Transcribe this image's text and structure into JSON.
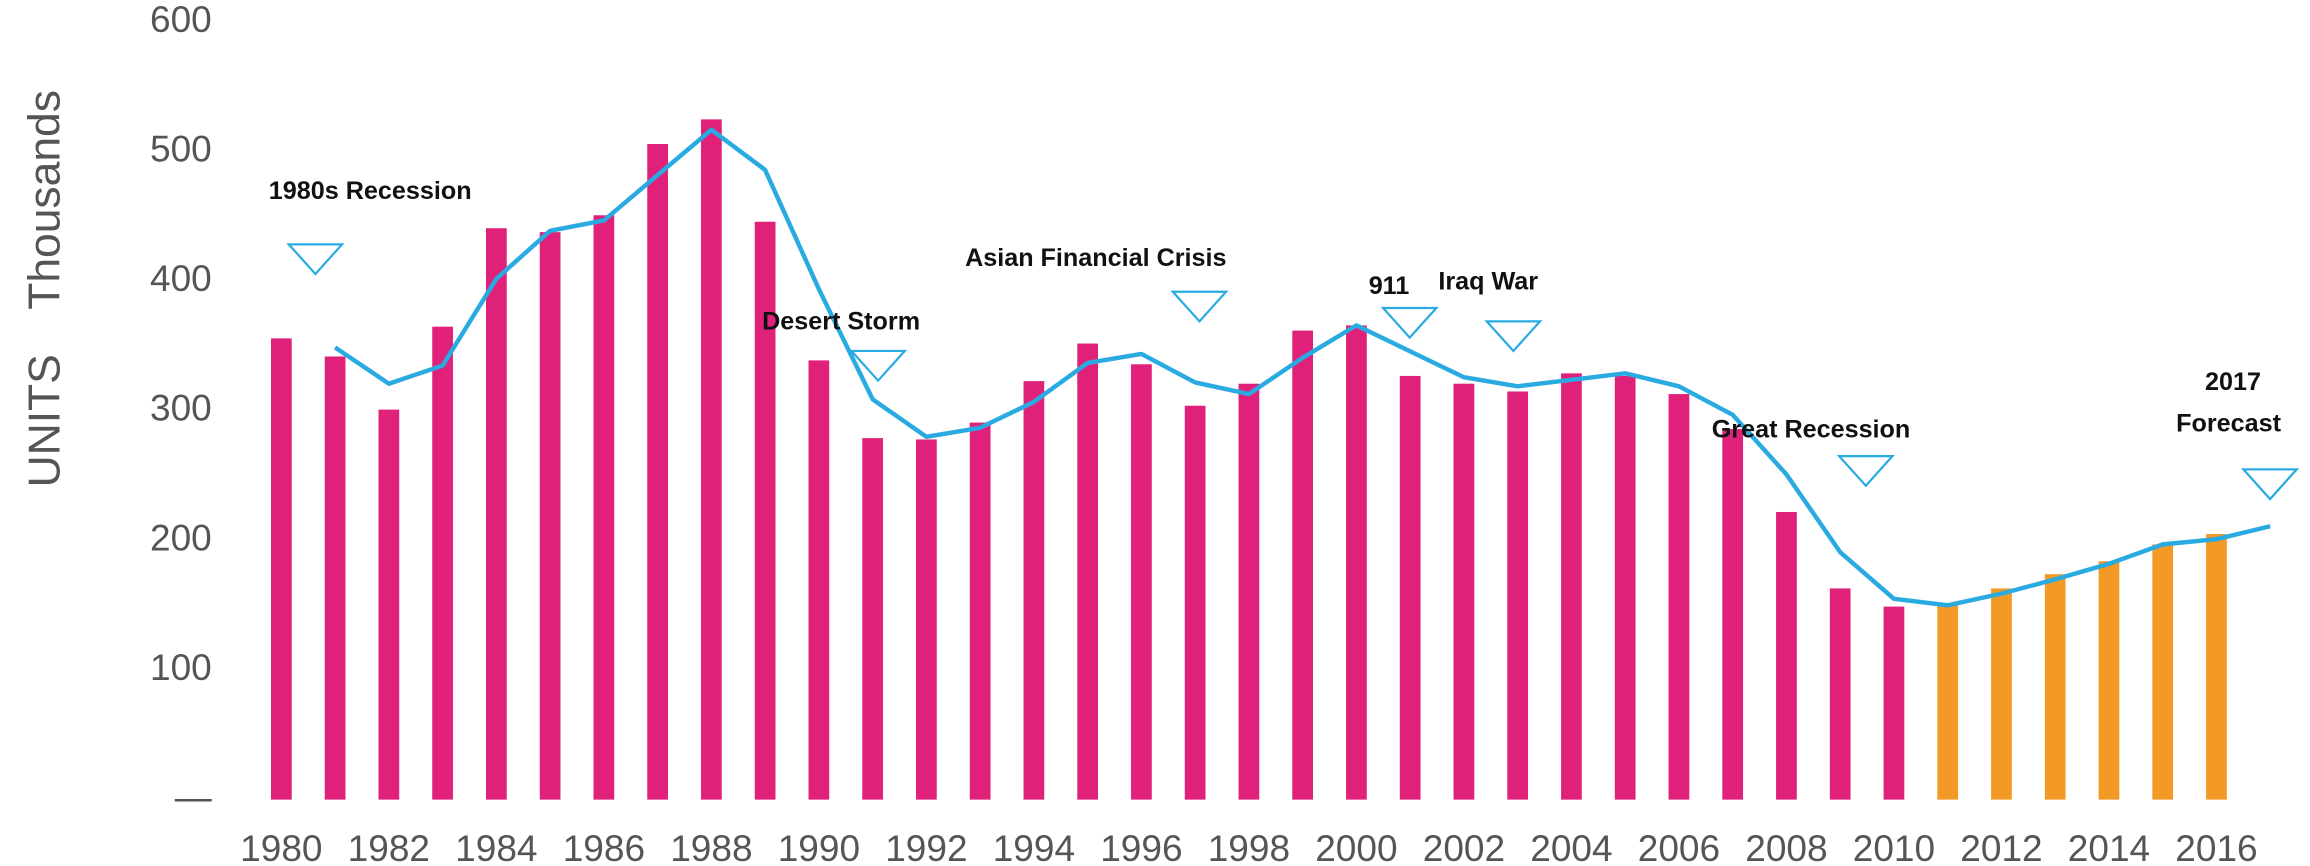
{
  "chart_data": {
    "type": "bar_line",
    "y_label": "UNITS",
    "y_unit": "Thousands",
    "categories": [
      "1980",
      null,
      "1982",
      null,
      "1984",
      null,
      "1986",
      null,
      "1988",
      null,
      "1990",
      null,
      "1992",
      null,
      "1994",
      null,
      "1996",
      null,
      "1998",
      null,
      "2000",
      null,
      "2002",
      null,
      "2004",
      null,
      "2006",
      null,
      "2008",
      null,
      "2010",
      null,
      "2012",
      null,
      "2014",
      null,
      "2016",
      null
    ],
    "series": [
      {
        "type": "bar",
        "colors": [
          "#e0217a",
          "#e0217a",
          "#e0217a",
          "#e0217a",
          "#e0217a",
          "#e0217a",
          "#e0217a",
          "#e0217a",
          "#e0217a",
          "#e0217a",
          "#e0217a",
          "#e0217a",
          "#e0217a",
          "#e0217a",
          "#e0217a",
          "#e0217a",
          "#e0217a",
          "#e0217a",
          "#e0217a",
          "#e0217a",
          "#e0217a",
          "#e0217a",
          "#e0217a",
          "#e0217a",
          "#e0217a",
          "#e0217a",
          "#e0217a",
          "#e0217a",
          "#e0217a",
          "#e0217a",
          "#e0217a",
          "#f39a26",
          "#f39a26",
          "#f39a26",
          "#f39a26",
          "#f39a26",
          "#f39a26",
          null
        ],
        "values": [
          356,
          342,
          301,
          365,
          441,
          438,
          451,
          506,
          525,
          446,
          339,
          279,
          278,
          291,
          323,
          352,
          336,
          304,
          321,
          362,
          366,
          327,
          321,
          315,
          329,
          327,
          313,
          286,
          222,
          163,
          149,
          151,
          163,
          174,
          184,
          197,
          205,
          null
        ]
      },
      {
        "type": "line",
        "color": "#29abe2",
        "values": [
          null,
          349,
          321,
          335,
          402,
          439,
          447,
          482,
          517,
          486,
          394,
          309,
          280,
          287,
          307,
          337,
          344,
          322,
          313,
          341,
          366,
          346,
          326,
          319,
          324,
          329,
          319,
          297,
          251,
          191,
          155,
          150,
          159,
          170,
          182,
          197,
          201,
          211
        ]
      }
    ],
    "annotations": [
      "1980s Recession",
      "Desert Storm",
      "Asian Financial Crisis",
      "911",
      "Iraq War",
      "Great Recession",
      "2017",
      "Forecast"
    ],
    "marker_color": "#29abe2",
    "ylim": [
      0,
      600
    ],
    "yticks": [
      {
        "value": 0,
        "label": "—"
      },
      100,
      200,
      300,
      400,
      500,
      600
    ]
  }
}
